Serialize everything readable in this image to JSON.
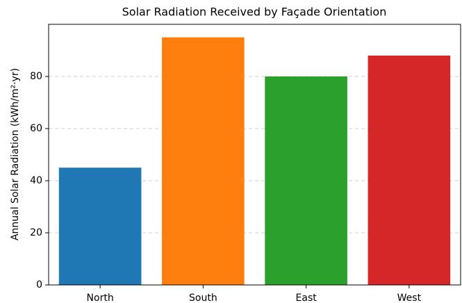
{
  "chart_data": {
    "type": "bar",
    "title": "Solar Radiation Received by Façade Orientation",
    "y_label": "Annual Solar Radiation (kWh/m²·yr)",
    "categories": [
      "North",
      "South",
      "East",
      "West"
    ],
    "values": [
      45,
      95,
      80,
      88
    ],
    "colors": [
      "#1f77b4",
      "#ff7f0e",
      "#2ca02c",
      "#d62728"
    ],
    "ylim": [
      0,
      100
    ],
    "yticks": [
      0,
      20,
      40,
      60,
      80
    ],
    "grid": true
  }
}
